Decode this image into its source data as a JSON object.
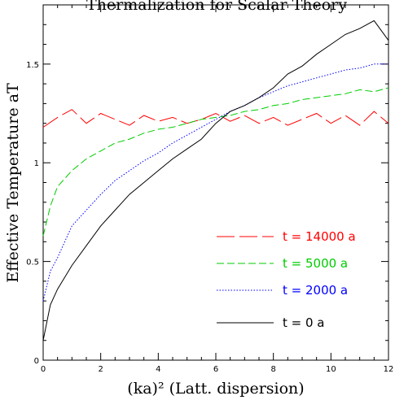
{
  "chart_data": {
    "type": "line",
    "title": "Thermalization for Scalar Theory",
    "xlabel": "(ka)² (Latt. dispersion)",
    "ylabel": "Effective Temperature  aT",
    "xlim": [
      0,
      12
    ],
    "ylim": [
      0,
      1.8
    ],
    "x_ticks": [
      "0",
      "2",
      "4",
      "6",
      "8",
      "10",
      "12"
    ],
    "y_ticks": [
      "0",
      "0.5",
      "1",
      "1.5"
    ],
    "grid": false,
    "legend_position": "lower-right",
    "series": [
      {
        "name": "t = 14000 a",
        "color": "#ff0000",
        "dash": "long-dash",
        "x": [
          0,
          0.5,
          1,
          1.5,
          2,
          2.5,
          3,
          3.5,
          4,
          4.5,
          5,
          5.5,
          6,
          6.5,
          7,
          7.5,
          8,
          8.5,
          9,
          9.5,
          10,
          10.5,
          11,
          11.5,
          12
        ],
        "y": [
          1.18,
          1.23,
          1.27,
          1.2,
          1.25,
          1.22,
          1.19,
          1.24,
          1.21,
          1.23,
          1.2,
          1.22,
          1.25,
          1.21,
          1.24,
          1.2,
          1.23,
          1.19,
          1.22,
          1.25,
          1.2,
          1.24,
          1.19,
          1.26,
          1.2
        ]
      },
      {
        "name": "t = 5000 a",
        "color": "#00cc00",
        "dash": "short-dash",
        "x": [
          0,
          0.25,
          0.5,
          1,
          1.5,
          2,
          2.5,
          3,
          3.5,
          4,
          4.5,
          5,
          5.5,
          6,
          6.5,
          7,
          7.5,
          8,
          8.5,
          9,
          9.5,
          10,
          10.5,
          11,
          11.5,
          12
        ],
        "y": [
          0.63,
          0.78,
          0.88,
          0.96,
          1.02,
          1.06,
          1.1,
          1.12,
          1.15,
          1.17,
          1.18,
          1.2,
          1.22,
          1.23,
          1.24,
          1.26,
          1.27,
          1.29,
          1.3,
          1.32,
          1.33,
          1.34,
          1.35,
          1.37,
          1.36,
          1.38
        ]
      },
      {
        "name": "t = 2000 a",
        "color": "#0000ff",
        "dash": "dotted",
        "x": [
          0,
          0.25,
          0.5,
          1,
          1.5,
          2,
          2.5,
          3,
          3.5,
          4,
          4.5,
          5,
          5.5,
          6,
          6.5,
          7,
          7.5,
          8,
          8.5,
          9,
          9.5,
          10,
          10.5,
          11,
          11.5,
          12
        ],
        "y": [
          0.3,
          0.45,
          0.52,
          0.68,
          0.76,
          0.84,
          0.91,
          0.96,
          1.01,
          1.05,
          1.1,
          1.14,
          1.18,
          1.22,
          1.26,
          1.29,
          1.33,
          1.36,
          1.39,
          1.41,
          1.43,
          1.45,
          1.47,
          1.48,
          1.5,
          1.5
        ]
      },
      {
        "name": "t = 0 a",
        "color": "#000000",
        "dash": "solid",
        "x": [
          0,
          0.25,
          0.5,
          1,
          1.5,
          2,
          2.5,
          3,
          3.5,
          4,
          4.5,
          5,
          5.5,
          6,
          6.5,
          7,
          7.5,
          8,
          8.5,
          9,
          9.5,
          10,
          10.5,
          11,
          11.5,
          12
        ],
        "y": [
          0.1,
          0.28,
          0.36,
          0.48,
          0.58,
          0.68,
          0.76,
          0.84,
          0.9,
          0.96,
          1.02,
          1.07,
          1.12,
          1.2,
          1.26,
          1.29,
          1.33,
          1.38,
          1.45,
          1.49,
          1.55,
          1.6,
          1.65,
          1.68,
          1.72,
          1.62
        ]
      }
    ]
  }
}
